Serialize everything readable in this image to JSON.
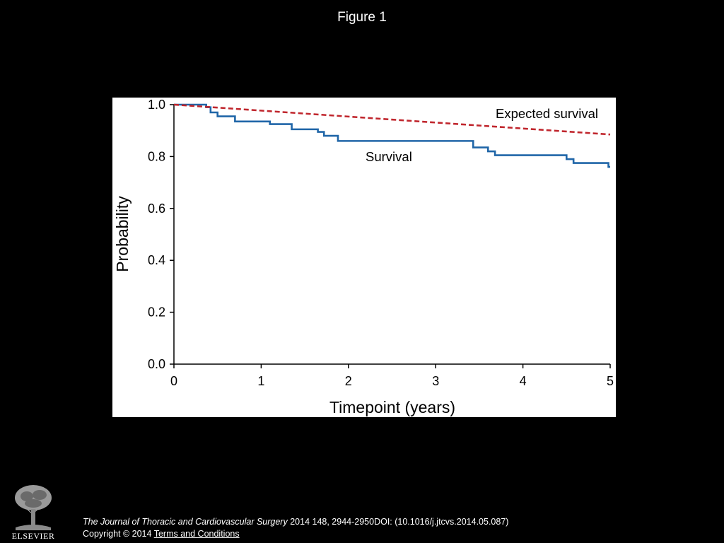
{
  "slide": {
    "title": "Figure 1"
  },
  "footer": {
    "publisher_logo_text": "ELSEVIER",
    "citation_journal": "The Journal of Thoracic and Cardiovascular Surgery",
    "citation_rest": " 2014 148, 2944-2950DOI: (10.1016/j.jtcvs.2014.05.087)",
    "copyright_text": "Copyright © 2014 ",
    "terms_link": " Terms and Conditions"
  },
  "colors": {
    "survival": "#2066a8",
    "expected": "#c0262d",
    "axis": "#000000",
    "background": "#000000",
    "panel": "#ffffff"
  },
  "chart_data": {
    "type": "line",
    "title": "",
    "xlabel": "Timepoint (years)",
    "ylabel": "Probability",
    "xlim": [
      0,
      5
    ],
    "ylim": [
      0,
      1
    ],
    "x_ticks": [
      "0",
      "1",
      "2",
      "3",
      "4",
      "5"
    ],
    "y_ticks": [
      "0.0",
      "0.2",
      "0.4",
      "0.6",
      "0.8",
      "1.0"
    ],
    "grid": false,
    "series": [
      {
        "name": "Survival",
        "style": "step",
        "points": [
          [
            0,
            1.0
          ],
          [
            0.37,
            0.99
          ],
          [
            0.42,
            0.97
          ],
          [
            0.5,
            0.955
          ],
          [
            0.7,
            0.935
          ],
          [
            1.1,
            0.925
          ],
          [
            1.35,
            0.905
          ],
          [
            1.65,
            0.895
          ],
          [
            1.72,
            0.88
          ],
          [
            1.88,
            0.86
          ],
          [
            3.43,
            0.835
          ],
          [
            3.6,
            0.82
          ],
          [
            3.68,
            0.805
          ],
          [
            4.5,
            0.79
          ],
          [
            4.58,
            0.775
          ],
          [
            4.98,
            0.76
          ],
          [
            5.0,
            0.76
          ]
        ]
      },
      {
        "name": "Expected survival",
        "style": "dashed",
        "points": [
          [
            0,
            1.0
          ],
          [
            5.0,
            0.885
          ]
        ]
      }
    ]
  }
}
